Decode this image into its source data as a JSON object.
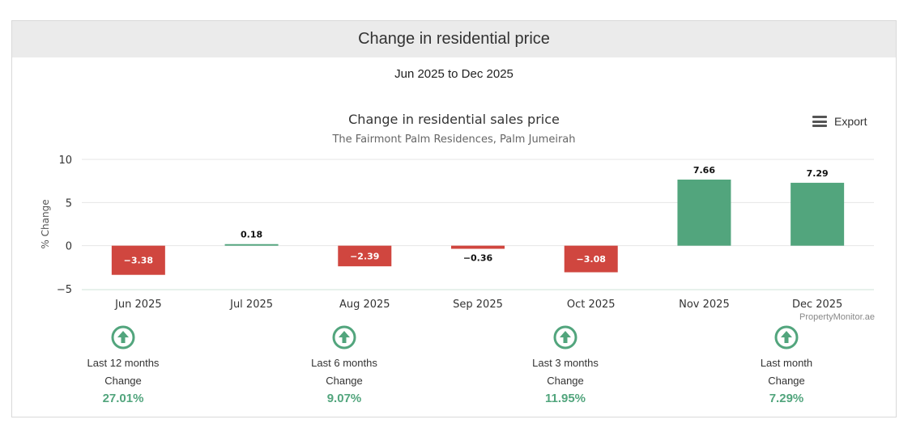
{
  "header": {
    "title": "Change in residential price"
  },
  "period": "Jun 2025 to Dec 2025",
  "export_label": "Export",
  "credit": "PropertyMonitor.ae",
  "chart_data": {
    "type": "bar",
    "title": "Change in residential sales price",
    "subtitle": "The Fairmont Palm Residences, Palm Jumeirah",
    "ylabel": "% Change",
    "xlabel": "",
    "ylim": [
      -5,
      10
    ],
    "yticks": [
      10,
      5,
      0,
      -5
    ],
    "categories": [
      "Jun 2025",
      "Jul 2025",
      "Aug 2025",
      "Sep 2025",
      "Oct 2025",
      "Nov 2025",
      "Dec 2025"
    ],
    "values": [
      -3.38,
      0.18,
      -2.39,
      -0.36,
      -3.08,
      7.66,
      7.29
    ],
    "value_labels": [
      "−3.38",
      "0.18",
      "−2.39",
      "−0.36",
      "−3.08",
      "7.66",
      "7.29"
    ],
    "grid": true,
    "colors": {
      "positive": "#52a57d",
      "negative": "#d0463f"
    }
  },
  "stats": [
    {
      "label": "Last 12 months",
      "sub": "Change",
      "value": "27.01%",
      "icon": "arrow-up-circle-icon"
    },
    {
      "label": "Last 6 months",
      "sub": "Change",
      "value": "9.07%",
      "icon": "arrow-up-circle-icon"
    },
    {
      "label": "Last 3 months",
      "sub": "Change",
      "value": "11.95%",
      "icon": "arrow-up-circle-icon"
    },
    {
      "label": "Last month",
      "sub": "Change",
      "value": "7.29%",
      "icon": "arrow-up-circle-icon"
    }
  ]
}
